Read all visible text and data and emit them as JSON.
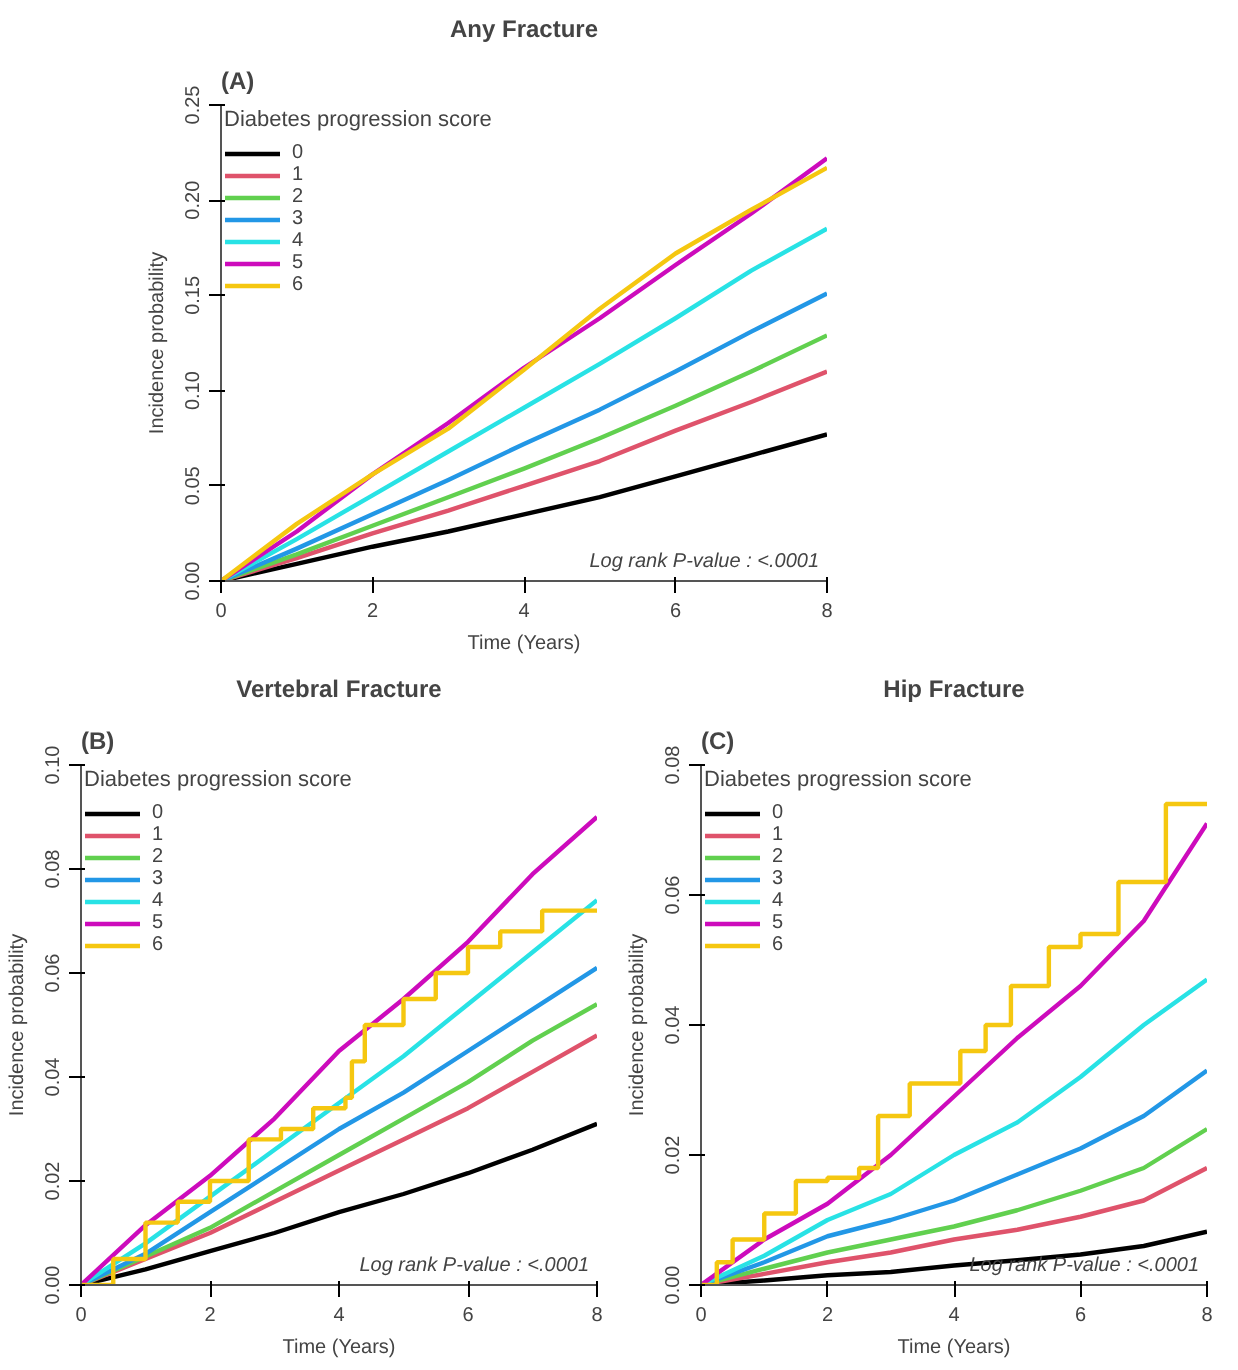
{
  "chart_data": [
    {
      "type": "line",
      "title": "Any Fracture",
      "xlabel": "Time (Years)",
      "ylabel": "Incidence probability",
      "legend_title": "Diabetes progression score",
      "legend": "top left",
      "grid": false,
      "annotations": [
        "(A)",
        "Log rank P-value : <.0001"
      ],
      "xlim": [
        0,
        8
      ],
      "ylim": [
        0,
        0.25
      ],
      "xticks": [
        0,
        2,
        4,
        6,
        8
      ],
      "yticks": [
        {
          "value": 0,
          "label": "0.00"
        },
        {
          "value": 0.05,
          "label": "0.05"
        },
        {
          "value": 0.1,
          "label": "0.10"
        },
        {
          "value": 0.15,
          "label": "0.15"
        },
        {
          "value": 0.2,
          "label": "0.20"
        },
        {
          "value": 0.25,
          "label": "0.25"
        }
      ],
      "x": [
        0,
        1,
        2,
        3,
        4,
        5,
        6,
        7,
        8
      ],
      "series": [
        {
          "name": "0",
          "color": "#000000",
          "values": [
            0,
            0.009,
            0.018,
            0.026,
            0.035,
            0.044,
            0.055,
            0.066,
            0.077
          ]
        },
        {
          "name": "1",
          "color": "#df536b",
          "values": [
            0,
            0.012,
            0.025,
            0.037,
            0.05,
            0.063,
            0.079,
            0.094,
            0.11
          ]
        },
        {
          "name": "2",
          "color": "#61d04f",
          "values": [
            0,
            0.014,
            0.029,
            0.044,
            0.059,
            0.075,
            0.092,
            0.11,
            0.129
          ]
        },
        {
          "name": "3",
          "color": "#2297e6",
          "values": [
            0,
            0.017,
            0.035,
            0.053,
            0.072,
            0.09,
            0.11,
            0.131,
            0.151
          ]
        },
        {
          "name": "4",
          "color": "#28e2e5",
          "values": [
            0,
            0.022,
            0.045,
            0.068,
            0.091,
            0.114,
            0.138,
            0.163,
            0.185
          ]
        },
        {
          "name": "5",
          "color": "#cd0bbc",
          "values": [
            0,
            0.026,
            0.056,
            0.083,
            0.112,
            0.138,
            0.166,
            0.193,
            0.222
          ]
        },
        {
          "name": "6",
          "color": "#f5c710",
          "values": [
            0,
            0.03,
            0.056,
            0.08,
            0.111,
            0.143,
            0.172,
            0.195,
            0.217
          ]
        }
      ]
    },
    {
      "type": "line",
      "title": "Vertebral Fracture",
      "xlabel": "Time (Years)",
      "ylabel": "Incidence probability",
      "legend_title": "Diabetes progression score",
      "legend": "top left",
      "grid": false,
      "annotations": [
        "(B)",
        "Log rank P-value : <.0001"
      ],
      "xlim": [
        0,
        8
      ],
      "ylim": [
        0,
        0.1
      ],
      "xticks": [
        0,
        2,
        4,
        6,
        8
      ],
      "yticks": [
        {
          "value": 0,
          "label": "0.00"
        },
        {
          "value": 0.02,
          "label": "0.02"
        },
        {
          "value": 0.04,
          "label": "0.04"
        },
        {
          "value": 0.06,
          "label": "0.06"
        },
        {
          "value": 0.08,
          "label": "0.08"
        },
        {
          "value": 0.1,
          "label": "0.10"
        }
      ],
      "x": [
        0,
        1,
        2,
        3,
        4,
        5,
        6,
        7,
        8
      ],
      "series": [
        {
          "name": "0",
          "color": "#000000",
          "values": [
            0,
            0.003,
            0.0065,
            0.01,
            0.014,
            0.0175,
            0.0215,
            0.026,
            0.031
          ]
        },
        {
          "name": "1",
          "color": "#df536b",
          "values": [
            0,
            0.005,
            0.01,
            0.016,
            0.022,
            0.028,
            0.034,
            0.041,
            0.048
          ]
        },
        {
          "name": "2",
          "color": "#61d04f",
          "values": [
            0,
            0.0055,
            0.011,
            0.018,
            0.025,
            0.032,
            0.039,
            0.047,
            0.054
          ]
        },
        {
          "name": "3",
          "color": "#2297e6",
          "values": [
            0,
            0.006,
            0.014,
            0.022,
            0.03,
            0.037,
            0.045,
            0.053,
            0.061
          ]
        },
        {
          "name": "4",
          "color": "#28e2e5",
          "values": [
            0,
            0.008,
            0.017,
            0.026,
            0.035,
            0.044,
            0.054,
            0.064,
            0.074
          ]
        },
        {
          "name": "5",
          "color": "#cd0bbc",
          "values": [
            0,
            0.0115,
            0.021,
            0.032,
            0.045,
            0.055,
            0.066,
            0.079,
            0.09
          ]
        },
        {
          "name": "6",
          "color": "#f5c710",
          "type": "step",
          "x": [
            0,
            0.5,
            1,
            1.5,
            2,
            2.6,
            3.1,
            3.6,
            4.1,
            4.2,
            4.4,
            5,
            5.5,
            6,
            6.5,
            7.15,
            8
          ],
          "values": [
            0,
            0.005,
            0.012,
            0.016,
            0.02,
            0.028,
            0.03,
            0.034,
            0.036,
            0.043,
            0.05,
            0.055,
            0.06,
            0.065,
            0.068,
            0.072,
            0.072
          ]
        }
      ]
    },
    {
      "type": "line",
      "title": "Hip Fracture",
      "xlabel": "Time (Years)",
      "ylabel": "Incidence probability",
      "legend_title": "Diabetes progression score",
      "legend": "top left",
      "grid": false,
      "annotations": [
        "(C)",
        "Log rank P-value : <.0001"
      ],
      "xlim": [
        0,
        8
      ],
      "ylim": [
        0,
        0.08
      ],
      "xticks": [
        0,
        2,
        4,
        6,
        8
      ],
      "yticks": [
        {
          "value": 0,
          "label": "0.00"
        },
        {
          "value": 0.02,
          "label": "0.02"
        },
        {
          "value": 0.04,
          "label": "0.04"
        },
        {
          "value": 0.06,
          "label": "0.06"
        },
        {
          "value": 0.08,
          "label": "0.08"
        }
      ],
      "x": [
        0,
        1,
        2,
        3,
        4,
        5,
        6,
        7,
        8
      ],
      "series": [
        {
          "name": "0",
          "color": "#000000",
          "values": [
            0,
            0.0007,
            0.0015,
            0.002,
            0.003,
            0.0038,
            0.0047,
            0.006,
            0.0082
          ]
        },
        {
          "name": "1",
          "color": "#df536b",
          "values": [
            0,
            0.0017,
            0.0035,
            0.005,
            0.007,
            0.0085,
            0.0105,
            0.013,
            0.018
          ]
        },
        {
          "name": "2",
          "color": "#61d04f",
          "values": [
            0,
            0.0025,
            0.005,
            0.007,
            0.009,
            0.0115,
            0.0145,
            0.018,
            0.024
          ]
        },
        {
          "name": "3",
          "color": "#2297e6",
          "values": [
            0,
            0.0035,
            0.0075,
            0.01,
            0.013,
            0.017,
            0.021,
            0.026,
            0.033
          ]
        },
        {
          "name": "4",
          "color": "#28e2e5",
          "values": [
            0,
            0.0045,
            0.01,
            0.014,
            0.02,
            0.025,
            0.032,
            0.04,
            0.047
          ]
        },
        {
          "name": "5",
          "color": "#cd0bbc",
          "values": [
            0,
            0.007,
            0.0125,
            0.02,
            0.029,
            0.038,
            0.046,
            0.056,
            0.071
          ]
        },
        {
          "name": "6",
          "color": "#f5c710",
          "type": "step",
          "x": [
            0,
            0.25,
            0.5,
            1,
            1.5,
            2,
            2.5,
            2.8,
            3.3,
            4.1,
            4.5,
            4.9,
            5.5,
            6,
            6.6,
            7.35,
            8
          ],
          "values": [
            0,
            0.0035,
            0.007,
            0.011,
            0.016,
            0.0165,
            0.018,
            0.026,
            0.031,
            0.036,
            0.04,
            0.046,
            0.052,
            0.054,
            0.062,
            0.074,
            0.074
          ]
        }
      ]
    }
  ]
}
